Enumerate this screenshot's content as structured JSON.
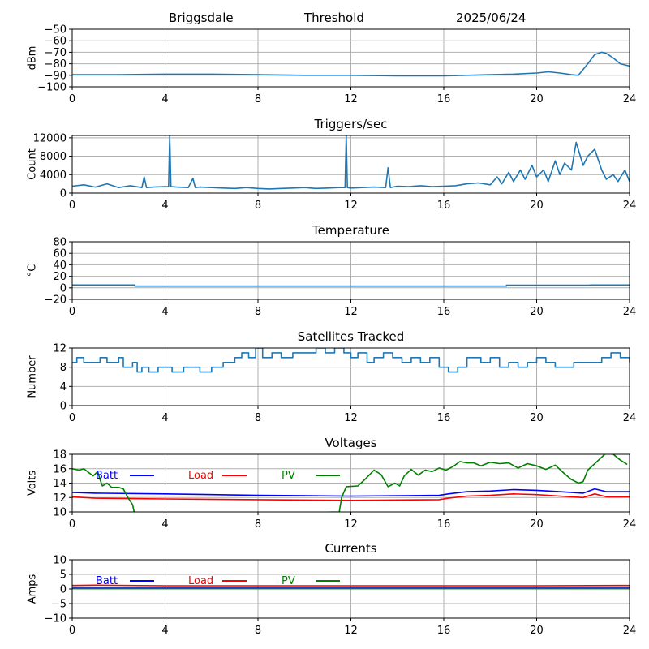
{
  "header": {
    "station": "Briggsdale",
    "mode": "Threshold",
    "date": "2025/06/24"
  },
  "chart_data": [
    {
      "type": "line",
      "title": "",
      "ylabel": "dBm",
      "xlim": [
        0,
        24
      ],
      "ylim": [
        -100,
        -50
      ],
      "xticks": [
        0,
        4,
        8,
        12,
        16,
        20,
        24
      ],
      "yticks": [
        -100,
        -90,
        -80,
        -70,
        -60,
        -50
      ],
      "grid": true,
      "series": [
        {
          "color": "#1f77b4",
          "x": [
            0,
            2,
            4,
            6,
            8,
            10,
            12,
            14,
            16,
            18,
            19,
            20,
            20.5,
            21,
            21.5,
            21.8,
            22.2,
            22.5,
            22.8,
            23,
            23.3,
            23.6,
            24
          ],
          "y": [
            -89.5,
            -89.5,
            -89,
            -89,
            -89.5,
            -90,
            -90,
            -90.5,
            -90.5,
            -89.5,
            -89,
            -88,
            -87,
            -88,
            -89.5,
            -90,
            -80,
            -72,
            -70,
            -71,
            -75,
            -80,
            -82
          ]
        }
      ]
    },
    {
      "type": "line",
      "title": "Triggers/sec",
      "ylabel": "Count",
      "xlim": [
        0,
        24
      ],
      "ylim": [
        0,
        12500
      ],
      "xticks": [
        0,
        4,
        8,
        12,
        16,
        20,
        24
      ],
      "yticks": [
        0,
        4000,
        8000,
        12000
      ],
      "grid": true,
      "series": [
        {
          "color": "#1f77b4",
          "x": [
            0,
            0.5,
            1,
            1.5,
            2,
            2.5,
            3,
            3.1,
            3.2,
            3.5,
            4,
            4.15,
            4.2,
            4.25,
            4.5,
            5,
            5.2,
            5.3,
            5.5,
            6,
            6.5,
            7,
            7.5,
            8,
            8.5,
            9,
            9.5,
            10,
            10.5,
            11,
            11.5,
            11.75,
            11.8,
            11.85,
            12,
            12.5,
            13,
            13.5,
            13.6,
            13.7,
            14,
            14.5,
            15,
            15.5,
            16,
            16.5,
            17,
            17.5,
            18,
            18.3,
            18.5,
            18.8,
            19,
            19.3,
            19.5,
            19.8,
            20,
            20.3,
            20.5,
            20.8,
            21,
            21.2,
            21.5,
            21.7,
            22,
            22.2,
            22.5,
            22.8,
            23,
            23.3,
            23.5,
            23.8,
            24
          ],
          "y": [
            1500,
            1800,
            1300,
            2000,
            1200,
            1600,
            1200,
            3500,
            1200,
            1300,
            1400,
            1400,
            12500,
            1400,
            1300,
            1200,
            3200,
            1200,
            1300,
            1200,
            1100,
            1000,
            1200,
            1000,
            900,
            1000,
            1100,
            1200,
            1000,
            1100,
            1200,
            1200,
            12500,
            1200,
            1100,
            1200,
            1300,
            1200,
            5500,
            1200,
            1500,
            1400,
            1600,
            1400,
            1500,
            1600,
            2000,
            2200,
            1800,
            3500,
            2000,
            4500,
            2500,
            5000,
            3000,
            6000,
            3500,
            5000,
            2500,
            7000,
            4000,
            6500,
            5000,
            11000,
            6000,
            8000,
            9500,
            5000,
            3000,
            4000,
            2500,
            5000,
            2500
          ]
        }
      ]
    },
    {
      "type": "line",
      "title": "Temperature",
      "ylabel": "°C",
      "xlim": [
        0,
        24
      ],
      "ylim": [
        -20,
        80
      ],
      "xticks": [
        0,
        4,
        8,
        12,
        16,
        20,
        24
      ],
      "yticks": [
        -20,
        0,
        20,
        40,
        60,
        80
      ],
      "grid": true,
      "series": [
        {
          "color": "#1f77b4",
          "x": [
            0,
            2.7,
            2.7,
            18.7,
            18.7,
            22.3,
            22.3,
            24
          ],
          "y": [
            5,
            5,
            3,
            3,
            4.5,
            4.5,
            5,
            5
          ]
        }
      ]
    },
    {
      "type": "line",
      "title": "Satellites Tracked",
      "ylabel": "Number",
      "xlim": [
        0,
        24
      ],
      "ylim": [
        0,
        12
      ],
      "xticks": [
        0,
        4,
        8,
        12,
        16,
        20,
        24
      ],
      "yticks": [
        0,
        4,
        8,
        12
      ],
      "grid": true,
      "series": [
        {
          "color": "#1f77b4",
          "step": true,
          "x": [
            0,
            0.2,
            0.5,
            1.2,
            1.5,
            2.0,
            2.2,
            2.6,
            2.8,
            3.0,
            3.3,
            3.7,
            4.0,
            4.3,
            4.8,
            5.5,
            6.0,
            6.5,
            7.0,
            7.3,
            7.6,
            7.9,
            8.2,
            8.6,
            9.0,
            9.5,
            10.0,
            10.5,
            10.9,
            11.3,
            11.7,
            12.0,
            12.3,
            12.7,
            13.0,
            13.4,
            13.8,
            14.2,
            14.6,
            15.0,
            15.4,
            15.8,
            16.2,
            16.6,
            17.0,
            17.6,
            18.0,
            18.4,
            18.8,
            19.2,
            19.6,
            20.0,
            20.4,
            20.8,
            21.2,
            21.6,
            22.0,
            22.4,
            22.8,
            23.2,
            23.6,
            24
          ],
          "y": [
            9,
            10,
            9,
            10,
            9,
            10,
            8,
            9,
            7,
            8,
            7,
            8,
            8,
            7,
            8,
            7,
            8,
            9,
            10,
            11,
            10,
            12,
            10,
            11,
            10,
            11,
            11,
            12,
            11,
            12,
            11,
            10,
            11,
            9,
            10,
            11,
            10,
            9,
            10,
            9,
            10,
            8,
            7,
            8,
            10,
            9,
            10,
            8,
            9,
            8,
            9,
            10,
            9,
            8,
            8,
            9,
            9,
            9,
            10,
            11,
            10,
            9
          ]
        }
      ]
    },
    {
      "type": "line",
      "title": "Voltages",
      "ylabel": "Volts",
      "xlim": [
        0,
        24
      ],
      "ylim": [
        10,
        18
      ],
      "xticks": [
        0,
        4,
        8,
        12,
        16,
        20,
        24
      ],
      "yticks": [
        10,
        12,
        14,
        16,
        18
      ],
      "grid": true,
      "legend": "inline-top",
      "series": [
        {
          "name": "Batt",
          "color": "#0000ff",
          "x": [
            0,
            1,
            4,
            8,
            12,
            15.8,
            16.2,
            17,
            18,
            19,
            20,
            21,
            22,
            22.5,
            23,
            24
          ],
          "y": [
            12.7,
            12.6,
            12.5,
            12.3,
            12.2,
            12.3,
            12.5,
            12.8,
            12.9,
            13.1,
            13.0,
            12.8,
            12.6,
            13.2,
            12.8,
            12.8
          ]
        },
        {
          "name": "Load",
          "color": "#ff0000",
          "x": [
            0,
            1,
            4,
            8,
            12,
            15.8,
            16.2,
            17,
            18,
            19,
            20,
            21,
            22,
            22.5,
            23,
            24
          ],
          "y": [
            12.1,
            11.9,
            11.8,
            11.7,
            11.6,
            11.7,
            11.9,
            12.2,
            12.3,
            12.5,
            12.4,
            12.2,
            12.0,
            12.5,
            12.1,
            12.1
          ]
        },
        {
          "name": "PV",
          "color": "#008000",
          "x": [
            0,
            0.3,
            0.5,
            0.7,
            0.9,
            1.1,
            1.2,
            1.3,
            1.5,
            1.7,
            2.0,
            2.2,
            2.4,
            2.6,
            2.7,
            11.5,
            11.6,
            11.8,
            12.3,
            12.6,
            13.0,
            13.3,
            13.6,
            13.9,
            14.1,
            14.3,
            14.6,
            14.9,
            15.2,
            15.5,
            15.8,
            16.1,
            16.4,
            16.7,
            17.0,
            17.3,
            17.6,
            18.0,
            18.4,
            18.8,
            19.2,
            19.6,
            20.0,
            20.4,
            20.8,
            21.2,
            21.5,
            21.8,
            22.0,
            22.2,
            22.6,
            23.0,
            23.3,
            23.6,
            23.9
          ],
          "y": [
            16.0,
            15.8,
            16.0,
            15.5,
            15.0,
            15.6,
            14.5,
            13.6,
            14.0,
            13.4,
            13.4,
            13.2,
            12.0,
            11.0,
            9.5,
            10.0,
            12.0,
            13.5,
            13.6,
            14.5,
            15.8,
            15.2,
            13.5,
            14.0,
            13.6,
            15.0,
            15.9,
            15.1,
            15.8,
            15.6,
            16.1,
            15.8,
            16.3,
            17.0,
            16.8,
            16.8,
            16.4,
            16.9,
            16.7,
            16.8,
            16.1,
            16.7,
            16.4,
            15.9,
            16.5,
            15.3,
            14.5,
            14.0,
            14.2,
            15.8,
            17.0,
            18.2,
            18.0,
            17.2,
            16.6
          ]
        }
      ]
    },
    {
      "type": "line",
      "title": "Currents",
      "ylabel": "Amps",
      "xlim": [
        0,
        24
      ],
      "ylim": [
        -10,
        10
      ],
      "xticks": [
        0,
        4,
        8,
        12,
        16,
        20,
        24
      ],
      "yticks": [
        -10,
        -5,
        0,
        5,
        10
      ],
      "grid": true,
      "legend": "inline-top",
      "series": [
        {
          "name": "Batt",
          "color": "#0000ff",
          "x": [
            0,
            24
          ],
          "y": [
            0.3,
            0.3
          ]
        },
        {
          "name": "Load",
          "color": "#ff0000",
          "x": [
            0,
            1,
            4,
            8,
            12,
            16,
            20,
            24
          ],
          "y": [
            1.2,
            1.3,
            1.1,
            1.1,
            1.1,
            1.1,
            1.1,
            1.2
          ]
        },
        {
          "name": "PV",
          "color": "#008000",
          "x": [
            0,
            24
          ],
          "y": [
            0.1,
            0.1
          ]
        }
      ]
    }
  ]
}
